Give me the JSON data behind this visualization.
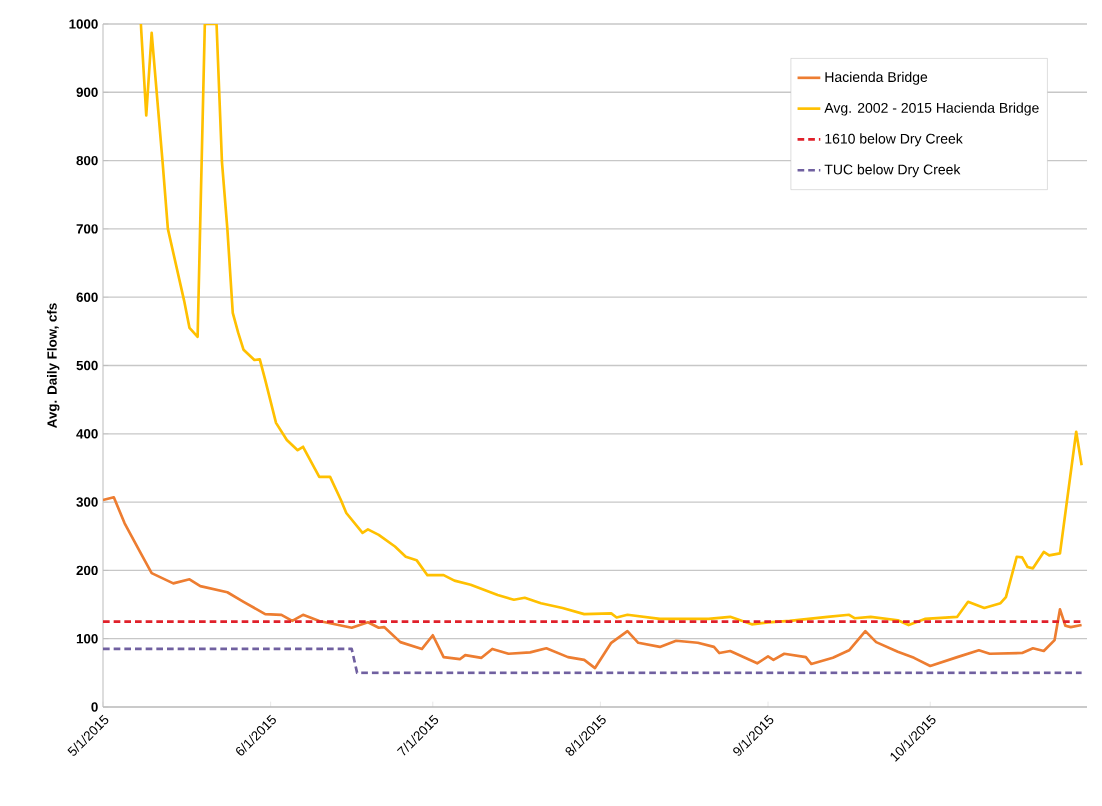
{
  "chart_data": {
    "type": "line",
    "ylabel": "Avg. Daily Flow, cfs",
    "xlim": [
      "2015-05-01",
      "2015-10-30"
    ],
    "xticks": [
      {
        "value": "2015-05-01",
        "label": "5/1/2015"
      },
      {
        "value": "2015-06-01",
        "label": "6/1/2015"
      },
      {
        "value": "2015-07-01",
        "label": "7/1/2015"
      },
      {
        "value": "2015-08-01",
        "label": "8/1/2015"
      },
      {
        "value": "2015-09-01",
        "label": "9/1/2015"
      },
      {
        "value": "2015-10-01",
        "label": "10/1/2015"
      }
    ],
    "ylim": [
      0,
      1000
    ],
    "yticks": [
      0,
      100,
      200,
      300,
      400,
      500,
      600,
      700,
      800,
      900,
      1000
    ],
    "grid": "y",
    "legend": "top right",
    "marker": "none",
    "series": [
      {
        "name": "Hacienda Bridge",
        "color": "#ed7d31",
        "line_style": "solid",
        "x": [
          "2015-05-01",
          "2015-05-03",
          "2015-05-05",
          "2015-05-08",
          "2015-05-10",
          "2015-05-14",
          "2015-05-17",
          "2015-05-19",
          "2015-05-24",
          "2015-05-27",
          "2015-05-31",
          "2015-06-03",
          "2015-06-05",
          "2015-06-07",
          "2015-06-10",
          "2015-06-16",
          "2015-06-19",
          "2015-06-21",
          "2015-06-22",
          "2015-06-25",
          "2015-06-29",
          "2015-07-01",
          "2015-07-03",
          "2015-07-06",
          "2015-07-07",
          "2015-07-10",
          "2015-07-12",
          "2015-07-15",
          "2015-07-19",
          "2015-07-22",
          "2015-07-26",
          "2015-07-29",
          "2015-07-31",
          "2015-08-03",
          "2015-08-06",
          "2015-08-08",
          "2015-08-12",
          "2015-08-15",
          "2015-08-19",
          "2015-08-22",
          "2015-08-23",
          "2015-08-25",
          "2015-08-30",
          "2015-09-01",
          "2015-09-02",
          "2015-09-04",
          "2015-09-08",
          "2015-09-09",
          "2015-09-13",
          "2015-09-16",
          "2015-09-19",
          "2015-09-21",
          "2015-09-25",
          "2015-09-28",
          "2015-10-01",
          "2015-10-06",
          "2015-10-10",
          "2015-10-12",
          "2015-10-18",
          "2015-10-20",
          "2015-10-22",
          "2015-10-24",
          "2015-10-25",
          "2015-10-26",
          "2015-10-27",
          "2015-10-29"
        ],
        "values": [
          303,
          307,
          269,
          225,
          196,
          181,
          187,
          177,
          168,
          154,
          136,
          135,
          126,
          135,
          126,
          116,
          124,
          116,
          117,
          95,
          85,
          105,
          73,
          70,
          76,
          72,
          85,
          78,
          80,
          86,
          73,
          69,
          57,
          94,
          111,
          94,
          88,
          97,
          94,
          88,
          79,
          82,
          64,
          74,
          69,
          78,
          73,
          63,
          72,
          83,
          111,
          95,
          81,
          72,
          60,
          73,
          83,
          78,
          79,
          86,
          82,
          98,
          143,
          119,
          117,
          120
        ]
      },
      {
        "name": "Avg. 2002 - 2015 Hacienda Bridge",
        "color": "#ffc000",
        "line_style": "solid",
        "x": [
          "2015-05-08",
          "2015-05-09",
          "2015-05-10",
          "2015-05-12",
          "2015-05-13",
          "2015-05-16",
          "2015-05-17",
          "2015-05-18T12:00",
          "2015-05-19T20:00",
          "2015-05-22",
          "2015-05-23",
          "2015-05-24",
          "2015-05-25",
          "2015-05-26",
          "2015-05-27",
          "2015-05-29",
          "2015-05-30",
          "2015-05-31",
          "2015-06-02",
          "2015-06-04",
          "2015-06-06",
          "2015-06-07",
          "2015-06-10",
          "2015-06-12",
          "2015-06-14",
          "2015-06-15",
          "2015-06-18",
          "2015-06-19",
          "2015-06-21",
          "2015-06-24",
          "2015-06-26",
          "2015-06-28",
          "2015-06-30",
          "2015-07-03",
          "2015-07-05",
          "2015-07-08",
          "2015-07-13",
          "2015-07-16",
          "2015-07-18",
          "2015-07-21",
          "2015-07-25",
          "2015-07-29",
          "2015-08-03",
          "2015-08-04",
          "2015-08-06",
          "2015-08-12",
          "2015-08-21",
          "2015-08-25",
          "2015-08-29",
          "2015-09-01",
          "2015-09-05",
          "2015-09-12",
          "2015-09-16",
          "2015-09-17",
          "2015-09-20",
          "2015-09-25",
          "2015-09-27",
          "2015-09-30",
          "2015-10-06",
          "2015-10-08",
          "2015-10-11",
          "2015-10-14",
          "2015-10-15",
          "2015-10-17",
          "2015-10-18",
          "2015-10-19",
          "2015-10-20",
          "2015-10-22",
          "2015-10-23",
          "2015-10-25",
          "2015-10-28",
          "2015-10-29"
        ],
        "values": [
          1000,
          866,
          987,
          800,
          700,
          595,
          555,
          542,
          1000,
          1000,
          798,
          700,
          577,
          548,
          523,
          508,
          509,
          479,
          416,
          391,
          376,
          381,
          337,
          337,
          303,
          284,
          255,
          260,
          252,
          235,
          220,
          215,
          193,
          193,
          185,
          179,
          164,
          157,
          160,
          152,
          145,
          136,
          137,
          131,
          135,
          129,
          129,
          132,
          121,
          124,
          126,
          132,
          135,
          130,
          132,
          127,
          120,
          129,
          132,
          154,
          145,
          152,
          161,
          220,
          219,
          205,
          203,
          227,
          222,
          225,
          403,
          354
        ]
      },
      {
        "name": "1610 below Dry Creek",
        "color": "#e0202a",
        "line_style": "dashed",
        "x": [
          "2015-05-01",
          "2015-10-29"
        ],
        "values": [
          125,
          125
        ]
      },
      {
        "name": "TUC below Dry Creek",
        "color": "#7060a0",
        "line_style": "dashed",
        "x": [
          "2015-05-01",
          "2015-06-16",
          "2015-06-17",
          "2015-10-29"
        ],
        "values": [
          85,
          85,
          50,
          50
        ]
      }
    ]
  }
}
